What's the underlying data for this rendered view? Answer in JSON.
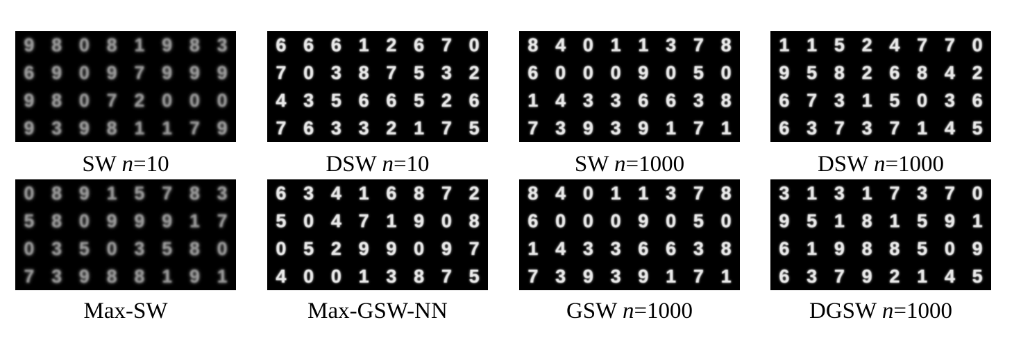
{
  "panels": [
    {
      "caption_pre": "SW ",
      "caption_var": "n",
      "caption_post": "=10",
      "digits": [
        "9",
        "8",
        "0",
        "8",
        "1",
        "9",
        "8",
        "3",
        "6",
        "9",
        "0",
        "9",
        "7",
        "9",
        "9",
        "9",
        "9",
        "8",
        "0",
        "7",
        "2",
        "0",
        "0",
        "0",
        "9",
        "3",
        "9",
        "8",
        "1",
        "1",
        "7",
        "9"
      ]
    },
    {
      "caption_pre": "DSW ",
      "caption_var": "n",
      "caption_post": "=10",
      "digits": [
        "6",
        "6",
        "6",
        "1",
        "2",
        "6",
        "7",
        "0",
        "7",
        "0",
        "3",
        "8",
        "7",
        "5",
        "3",
        "2",
        "4",
        "3",
        "5",
        "6",
        "6",
        "5",
        "2",
        "6",
        "7",
        "6",
        "3",
        "3",
        "2",
        "1",
        "7",
        "5"
      ]
    },
    {
      "caption_pre": "SW ",
      "caption_var": "n",
      "caption_post": "=1000",
      "digits": [
        "8",
        "4",
        "0",
        "1",
        "1",
        "3",
        "7",
        "8",
        "6",
        "0",
        "0",
        "0",
        "9",
        "0",
        "5",
        "0",
        "1",
        "4",
        "3",
        "3",
        "6",
        "6",
        "3",
        "8",
        "7",
        "3",
        "9",
        "3",
        "9",
        "1",
        "7",
        "1"
      ]
    },
    {
      "caption_pre": "DSW ",
      "caption_var": "n",
      "caption_post": "=1000",
      "digits": [
        "1",
        "1",
        "5",
        "2",
        "4",
        "7",
        "7",
        "0",
        "9",
        "5",
        "8",
        "2",
        "6",
        "8",
        "4",
        "2",
        "6",
        "7",
        "3",
        "1",
        "5",
        "0",
        "3",
        "6",
        "6",
        "3",
        "7",
        "3",
        "7",
        "1",
        "4",
        "5"
      ]
    },
    {
      "caption_pre": "Max-SW",
      "caption_var": "",
      "caption_post": "",
      "digits": [
        "0",
        "8",
        "9",
        "1",
        "5",
        "7",
        "8",
        "3",
        "5",
        "8",
        "0",
        "9",
        "9",
        "9",
        "1",
        "7",
        "0",
        "3",
        "5",
        "0",
        "3",
        "5",
        "8",
        "0",
        "7",
        "3",
        "9",
        "8",
        "8",
        "1",
        "9",
        "1"
      ]
    },
    {
      "caption_pre": "Max-GSW-NN",
      "caption_var": "",
      "caption_post": "",
      "digits": [
        "6",
        "3",
        "4",
        "1",
        "6",
        "8",
        "7",
        "2",
        "5",
        "0",
        "4",
        "7",
        "1",
        "9",
        "0",
        "8",
        "0",
        "5",
        "2",
        "9",
        "9",
        "0",
        "9",
        "7",
        "4",
        "0",
        "0",
        "1",
        "3",
        "8",
        "7",
        "5"
      ]
    },
    {
      "caption_pre": "GSW ",
      "caption_var": "n",
      "caption_post": "=1000",
      "digits": [
        "8",
        "4",
        "0",
        "1",
        "1",
        "3",
        "7",
        "8",
        "6",
        "0",
        "0",
        "0",
        "9",
        "0",
        "5",
        "0",
        "1",
        "4",
        "3",
        "3",
        "6",
        "6",
        "3",
        "8",
        "7",
        "3",
        "9",
        "3",
        "9",
        "1",
        "7",
        "1"
      ]
    },
    {
      "caption_pre": "DGSW ",
      "caption_var": "n",
      "caption_post": "=1000",
      "digits": [
        "3",
        "1",
        "3",
        "1",
        "7",
        "3",
        "7",
        "0",
        "9",
        "5",
        "1",
        "8",
        "1",
        "5",
        "9",
        "1",
        "6",
        "1",
        "9",
        "8",
        "8",
        "5",
        "0",
        "9",
        "6",
        "3",
        "7",
        "9",
        "2",
        "1",
        "4",
        "5"
      ]
    }
  ]
}
